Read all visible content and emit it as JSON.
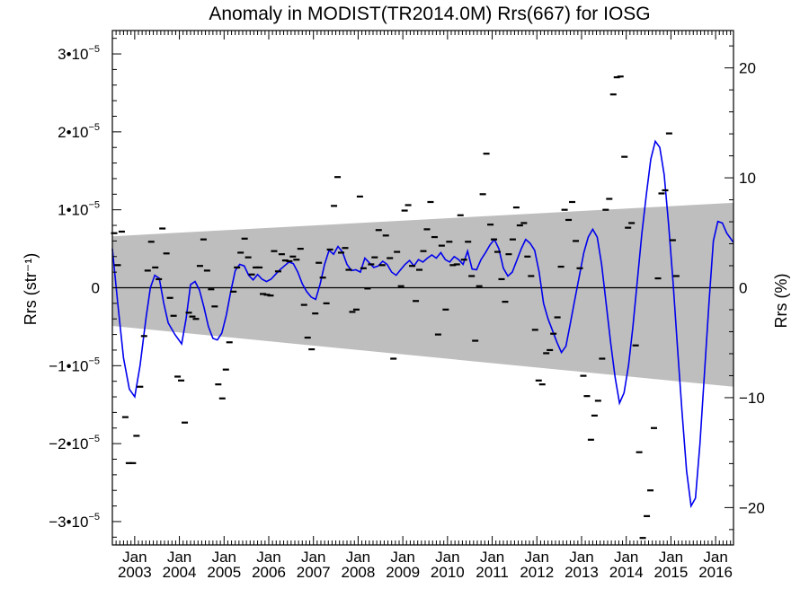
{
  "chart_data": {
    "type": "scatter",
    "title": "Anomaly in MODIST(TR2014.0M) Rrs(667) for IOSG",
    "ylabel_left": "Rrs (str⁻¹)",
    "ylabel_right": "Rrs (%)",
    "x_axis": {
      "range": [
        2002.5,
        2016.4
      ],
      "tick_labels": [
        {
          "month": "Jan",
          "year": "2003",
          "x": 2003.0
        },
        {
          "month": "Jan",
          "year": "2004",
          "x": 2004.0
        },
        {
          "month": "Jan",
          "year": "2005",
          "x": 2005.0
        },
        {
          "month": "Jan",
          "year": "2006",
          "x": 2006.0
        },
        {
          "month": "Jan",
          "year": "2007",
          "x": 2007.0
        },
        {
          "month": "Jan",
          "year": "2008",
          "x": 2008.0
        },
        {
          "month": "Jan",
          "year": "2009",
          "x": 2009.0
        },
        {
          "month": "Jan",
          "year": "2010",
          "x": 2010.0
        },
        {
          "month": "Jan",
          "year": "2011",
          "x": 2011.0
        },
        {
          "month": "Jan",
          "year": "2012",
          "x": 2012.0
        },
        {
          "month": "Jan",
          "year": "2013",
          "x": 2013.0
        },
        {
          "month": "Jan",
          "year": "2014",
          "x": 2014.0
        },
        {
          "month": "Jan",
          "year": "2015",
          "x": 2015.0
        },
        {
          "month": "Jan",
          "year": "2016",
          "x": 2016.0
        }
      ]
    },
    "y_left": {
      "range": [
        -3.3e-05,
        3.3e-05
      ],
      "ticks": [
        {
          "value": -3e-05,
          "mantissa": "−3•10",
          "exp": "−5"
        },
        {
          "value": -2e-05,
          "mantissa": "−2•10",
          "exp": "−5"
        },
        {
          "value": -1e-05,
          "mantissa": "−1•10",
          "exp": "−5"
        },
        {
          "value": 0,
          "mantissa": "0",
          "exp": ""
        },
        {
          "value": 1e-05,
          "mantissa": "1•10",
          "exp": "−5"
        },
        {
          "value": 2e-05,
          "mantissa": "2•10",
          "exp": "−5"
        },
        {
          "value": 3e-05,
          "mantissa": "3•10",
          "exp": "−5"
        }
      ]
    },
    "y_right": {
      "range": [
        -23.4,
        23.4
      ],
      "ticks": [
        {
          "value": -20,
          "label": "−20"
        },
        {
          "value": -10,
          "label": "−10"
        },
        {
          "value": 0,
          "label": "0"
        },
        {
          "value": 10,
          "label": "10"
        },
        {
          "value": 20,
          "label": "20"
        }
      ]
    },
    "band": {
      "upper": [
        [
          2002.5,
          6.6e-06
        ],
        [
          2016.4,
          1.09e-05
        ]
      ],
      "lower": [
        [
          2002.5,
          -4.9e-06
        ],
        [
          2016.4,
          -1.27e-05
        ]
      ],
      "color": "#bebebe"
    },
    "zero_line": true,
    "colors": {
      "smoothed": "#0000ee",
      "points": "#000000"
    },
    "points": [
      [
        2002.54,
        7e-06
      ],
      [
        2002.62,
        2.9e-06
      ],
      [
        2002.71,
        7.2e-06
      ],
      [
        2002.79,
        -1.66e-05
      ],
      [
        2002.87,
        -2.25e-05
      ],
      [
        2002.96,
        -2.25e-05
      ],
      [
        2003.04,
        -1.9e-05
      ],
      [
        2003.12,
        -1.27e-05
      ],
      [
        2003.21,
        -6.2e-06
      ],
      [
        2003.29,
        2.2e-06
      ],
      [
        2003.37,
        5.9e-06
      ],
      [
        2003.46,
        2.6e-06
      ],
      [
        2003.54,
        1.1e-06
      ],
      [
        2003.62,
        7.6e-06
      ],
      [
        2003.71,
        4.4e-06
      ],
      [
        2003.79,
        -1.3e-06
      ],
      [
        2003.87,
        -3.6e-06
      ],
      [
        2003.96,
        -1.14e-05
      ],
      [
        2004.04,
        -1.19e-05
      ],
      [
        2004.12,
        -1.73e-05
      ],
      [
        2004.21,
        -3.2e-06
      ],
      [
        2004.29,
        -3.7e-06
      ],
      [
        2004.37,
        -4e-06
      ],
      [
        2004.46,
        2.8e-06
      ],
      [
        2004.54,
        6.2e-06
      ],
      [
        2004.62,
        2.2e-06
      ],
      [
        2004.71,
        -2e-07
      ],
      [
        2004.79,
        -2.4e-06
      ],
      [
        2004.87,
        -1.24e-05
      ],
      [
        2004.96,
        -1.42e-05
      ],
      [
        2005.04,
        -1.05e-05
      ],
      [
        2005.12,
        -7e-06
      ],
      [
        2005.21,
        -5e-07
      ],
      [
        2005.29,
        2.6e-06
      ],
      [
        2005.37,
        4.5e-06
      ],
      [
        2005.46,
        6.3e-06
      ],
      [
        2005.54,
        3.9e-06
      ],
      [
        2005.62,
        1.7e-06
      ],
      [
        2005.71,
        2.6e-06
      ],
      [
        2005.79,
        2.6e-06
      ],
      [
        2005.87,
        -8e-07
      ],
      [
        2005.96,
        -9e-07
      ],
      [
        2006.04,
        -1e-06
      ],
      [
        2006.12,
        4.7e-06
      ],
      [
        2006.21,
        2.1e-06
      ],
      [
        2006.29,
        4.3e-06
      ],
      [
        2006.37,
        3.5e-06
      ],
      [
        2006.46,
        3.4e-06
      ],
      [
        2006.54,
        4e-06
      ],
      [
        2006.62,
        3.6e-06
      ],
      [
        2006.71,
        5e-06
      ],
      [
        2006.79,
        -2.2e-06
      ],
      [
        2006.87,
        -6.4e-06
      ],
      [
        2006.96,
        -7.9e-06
      ],
      [
        2007.04,
        -3.3e-06
      ],
      [
        2007.12,
        3.2e-06
      ],
      [
        2007.21,
        1.3e-06
      ],
      [
        2007.29,
        -2e-06
      ],
      [
        2007.37,
        4.9e-06
      ],
      [
        2007.46,
        1.05e-05
      ],
      [
        2007.54,
        1.42e-05
      ],
      [
        2007.62,
        4.5e-06
      ],
      [
        2007.71,
        5.1e-06
      ],
      [
        2007.79,
        2.3e-06
      ],
      [
        2007.87,
        -3.1e-06
      ],
      [
        2007.96,
        -2.8e-06
      ],
      [
        2008.04,
        1.17e-05
      ],
      [
        2008.12,
        2.5e-06
      ],
      [
        2008.21,
        -1e-07
      ],
      [
        2008.29,
        3e-06
      ],
      [
        2008.37,
        3.9e-06
      ],
      [
        2008.46,
        7.4e-06
      ],
      [
        2008.54,
        2.9e-06
      ],
      [
        2008.62,
        6.7e-06
      ],
      [
        2008.71,
        3.8e-06
      ],
      [
        2008.79,
        -9.1e-06
      ],
      [
        2008.87,
        4.6e-06
      ],
      [
        2008.96,
        2e-07
      ],
      [
        2009.04,
        9.9e-06
      ],
      [
        2009.12,
        1.06e-05
      ],
      [
        2009.21,
        2.8e-06
      ],
      [
        2009.29,
        -1.7e-06
      ],
      [
        2009.37,
        2.3e-06
      ],
      [
        2009.46,
        4.7e-06
      ],
      [
        2009.54,
        7.5e-06
      ],
      [
        2009.62,
        1.1e-05
      ],
      [
        2009.71,
        6.5e-06
      ],
      [
        2009.79,
        -6e-06
      ],
      [
        2009.87,
        5.4e-06
      ],
      [
        2009.96,
        -2.8e-06
      ],
      [
        2010.04,
        5.9e-06
      ],
      [
        2010.12,
        2.9e-06
      ],
      [
        2010.21,
        3e-06
      ],
      [
        2010.29,
        9.3e-06
      ],
      [
        2010.37,
        3.6e-06
      ],
      [
        2010.46,
        5.9e-06
      ],
      [
        2010.54,
        1.5e-06
      ],
      [
        2010.62,
        -6.8e-06
      ],
      [
        2010.71,
        2e-07
      ],
      [
        2010.79,
        1.2e-05
      ],
      [
        2010.87,
        1.72e-05
      ],
      [
        2010.96,
        8.1e-06
      ],
      [
        2011.04,
        6.2e-06
      ],
      [
        2011.12,
        4.6e-06
      ],
      [
        2011.21,
        1.1e-06
      ],
      [
        2011.29,
        -1.8e-06
      ],
      [
        2011.37,
        4.3e-06
      ],
      [
        2011.46,
        6.2e-06
      ],
      [
        2011.54,
        1.03e-05
      ],
      [
        2011.62,
        8e-06
      ],
      [
        2011.71,
        8.3e-06
      ],
      [
        2011.79,
        4e-06
      ],
      [
        2011.87,
        1.5e-06
      ],
      [
        2011.96,
        -5.4e-06
      ],
      [
        2012.04,
        -1.19e-05
      ],
      [
        2012.12,
        -1.24e-05
      ],
      [
        2012.21,
        -8.4e-06
      ],
      [
        2012.29,
        -8e-06
      ],
      [
        2012.37,
        -5.9e-06
      ],
      [
        2012.46,
        -3.8e-06
      ],
      [
        2012.54,
        2.7e-06
      ],
      [
        2012.62,
        1e-05
      ],
      [
        2012.71,
        8.7e-06
      ],
      [
        2012.79,
        1.1e-05
      ],
      [
        2012.87,
        6e-06
      ],
      [
        2012.96,
        2.5e-06
      ],
      [
        2013.04,
        -1.13e-05
      ],
      [
        2013.12,
        -1.39e-05
      ],
      [
        2013.21,
        -1.95e-05
      ],
      [
        2013.29,
        -1.64e-05
      ],
      [
        2013.37,
        -1.45e-05
      ],
      [
        2013.46,
        -9.1e-06
      ],
      [
        2013.54,
        1e-05
      ],
      [
        2013.62,
        1.14e-05
      ],
      [
        2013.71,
        2.48e-05
      ],
      [
        2013.79,
        2.7e-05
      ],
      [
        2013.87,
        2.71e-05
      ],
      [
        2013.96,
        1.68e-05
      ],
      [
        2014.04,
        7.7e-06
      ],
      [
        2014.12,
        8.3e-06
      ],
      [
        2014.21,
        -7.4e-06
      ],
      [
        2014.29,
        -2.11e-05
      ],
      [
        2014.37,
        -3.21e-05
      ],
      [
        2014.46,
        -2.93e-05
      ],
      [
        2014.54,
        -2.6e-05
      ],
      [
        2014.62,
        -1.8e-05
      ],
      [
        2014.71,
        1.2e-06
      ],
      [
        2014.79,
        1.21e-05
      ],
      [
        2014.87,
        1.25e-05
      ],
      [
        2014.96,
        1.98e-05
      ],
      [
        2015.04,
        6.1e-06
      ],
      [
        2015.12,
        1.5e-06
      ]
    ],
    "smoothed": [
      [
        2002.5,
        5e-06
      ],
      [
        2002.62,
        -2e-06
      ],
      [
        2002.75,
        -9e-06
      ],
      [
        2002.88,
        -1.3e-05
      ],
      [
        2003.0,
        -1.4e-05
      ],
      [
        2003.12,
        -1e-05
      ],
      [
        2003.25,
        -4e-06
      ],
      [
        2003.35,
        0.0
      ],
      [
        2003.45,
        1.6e-06
      ],
      [
        2003.55,
        1.2e-06
      ],
      [
        2003.65,
        -2e-06
      ],
      [
        2003.75,
        -4.5e-06
      ],
      [
        2003.9,
        -6e-06
      ],
      [
        2004.05,
        -7.2e-06
      ],
      [
        2004.15,
        -4e-06
      ],
      [
        2004.25,
        4e-07
      ],
      [
        2004.35,
        8e-07
      ],
      [
        2004.45,
        -3e-07
      ],
      [
        2004.55,
        -2.5e-06
      ],
      [
        2004.65,
        -5e-06
      ],
      [
        2004.75,
        -6.5e-06
      ],
      [
        2004.85,
        -6.7e-06
      ],
      [
        2004.95,
        -5.8e-06
      ],
      [
        2005.05,
        -3.5e-06
      ],
      [
        2005.15,
        -5e-07
      ],
      [
        2005.25,
        2.2e-06
      ],
      [
        2005.35,
        3e-06
      ],
      [
        2005.45,
        2.8e-06
      ],
      [
        2005.55,
        1.6e-06
      ],
      [
        2005.65,
        1e-06
      ],
      [
        2005.75,
        1.7e-06
      ],
      [
        2005.85,
        1.1e-06
      ],
      [
        2005.95,
        8e-07
      ],
      [
        2006.05,
        1.1e-06
      ],
      [
        2006.15,
        1.7e-06
      ],
      [
        2006.25,
        2.3e-06
      ],
      [
        2006.35,
        2.8e-06
      ],
      [
        2006.45,
        3.3e-06
      ],
      [
        2006.55,
        3.1e-06
      ],
      [
        2006.65,
        2e-06
      ],
      [
        2006.75,
        5e-07
      ],
      [
        2006.85,
        -5e-07
      ],
      [
        2006.95,
        -1.2e-06
      ],
      [
        2007.05,
        -1.5e-06
      ],
      [
        2007.15,
        5e-07
      ],
      [
        2007.25,
        3e-06
      ],
      [
        2007.35,
        4.8e-06
      ],
      [
        2007.45,
        4.3e-06
      ],
      [
        2007.55,
        5.3e-06
      ],
      [
        2007.65,
        4.6e-06
      ],
      [
        2007.75,
        3e-06
      ],
      [
        2007.85,
        2.2e-06
      ],
      [
        2007.95,
        2.3e-06
      ],
      [
        2008.05,
        2e-06
      ],
      [
        2008.15,
        3.8e-06
      ],
      [
        2008.25,
        3.2e-06
      ],
      [
        2008.35,
        2.6e-06
      ],
      [
        2008.45,
        2.8e-06
      ],
      [
        2008.55,
        3.4e-06
      ],
      [
        2008.65,
        3e-06
      ],
      [
        2008.75,
        2e-06
      ],
      [
        2008.85,
        1.6e-06
      ],
      [
        2008.95,
        2.3e-06
      ],
      [
        2009.05,
        3e-06
      ],
      [
        2009.15,
        3.5e-06
      ],
      [
        2009.25,
        2.8e-06
      ],
      [
        2009.35,
        3.6e-06
      ],
      [
        2009.45,
        3.3e-06
      ],
      [
        2009.55,
        3.8e-06
      ],
      [
        2009.65,
        4.2e-06
      ],
      [
        2009.75,
        3.8e-06
      ],
      [
        2009.85,
        4.5e-06
      ],
      [
        2009.95,
        3.6e-06
      ],
      [
        2010.05,
        3.3e-06
      ],
      [
        2010.15,
        4e-06
      ],
      [
        2010.25,
        3.6e-06
      ],
      [
        2010.35,
        3e-06
      ],
      [
        2010.45,
        4.7e-06
      ],
      [
        2010.55,
        2.4e-06
      ],
      [
        2010.65,
        2.3e-06
      ],
      [
        2010.75,
        3.6e-06
      ],
      [
        2010.85,
        4.5e-06
      ],
      [
        2010.95,
        5.5e-06
      ],
      [
        2011.05,
        6.2e-06
      ],
      [
        2011.15,
        5e-06
      ],
      [
        2011.25,
        2.5e-06
      ],
      [
        2011.35,
        1.5e-06
      ],
      [
        2011.45,
        2e-06
      ],
      [
        2011.55,
        3.5e-06
      ],
      [
        2011.65,
        5e-06
      ],
      [
        2011.75,
        6.2e-06
      ],
      [
        2011.85,
        5.7e-06
      ],
      [
        2011.95,
        4.8e-06
      ],
      [
        2012.05,
        2e-06
      ],
      [
        2012.15,
        -2e-06
      ],
      [
        2012.25,
        -4e-06
      ],
      [
        2012.35,
        -5.5e-06
      ],
      [
        2012.45,
        -7e-06
      ],
      [
        2012.55,
        -8.3e-06
      ],
      [
        2012.65,
        -7.5e-06
      ],
      [
        2012.75,
        -4.5e-06
      ],
      [
        2012.85,
        -1.5e-06
      ],
      [
        2012.95,
        1.5e-06
      ],
      [
        2013.05,
        4.5e-06
      ],
      [
        2013.15,
        6.5e-06
      ],
      [
        2013.25,
        7.5e-06
      ],
      [
        2013.35,
        6.5e-06
      ],
      [
        2013.45,
        3e-06
      ],
      [
        2013.55,
        -2e-06
      ],
      [
        2013.65,
        -7e-06
      ],
      [
        2013.75,
        -1.15e-05
      ],
      [
        2013.85,
        -1.48e-05
      ],
      [
        2013.95,
        -1.35e-05
      ],
      [
        2014.05,
        -1e-05
      ],
      [
        2014.15,
        -5e-06
      ],
      [
        2014.25,
        1e-06
      ],
      [
        2014.35,
        7e-06
      ],
      [
        2014.45,
        1.2e-05
      ],
      [
        2014.55,
        1.65e-05
      ],
      [
        2014.65,
        1.88e-05
      ],
      [
        2014.75,
        1.8e-05
      ],
      [
        2014.85,
        1.45e-05
      ],
      [
        2014.95,
        8e-06
      ],
      [
        2015.05,
        5e-07
      ],
      [
        2015.15,
        -8e-06
      ],
      [
        2015.25,
        -1.6e-05
      ],
      [
        2015.35,
        -2.35e-05
      ],
      [
        2015.45,
        -2.8e-05
      ],
      [
        2015.55,
        -2.7e-05
      ],
      [
        2015.65,
        -2e-05
      ],
      [
        2015.75,
        -1.1e-05
      ],
      [
        2015.85,
        -2e-06
      ],
      [
        2015.95,
        6e-06
      ],
      [
        2016.05,
        8.5e-06
      ],
      [
        2016.15,
        8.3e-06
      ],
      [
        2016.25,
        7e-06
      ],
      [
        2016.4,
        5.8e-06
      ]
    ]
  }
}
